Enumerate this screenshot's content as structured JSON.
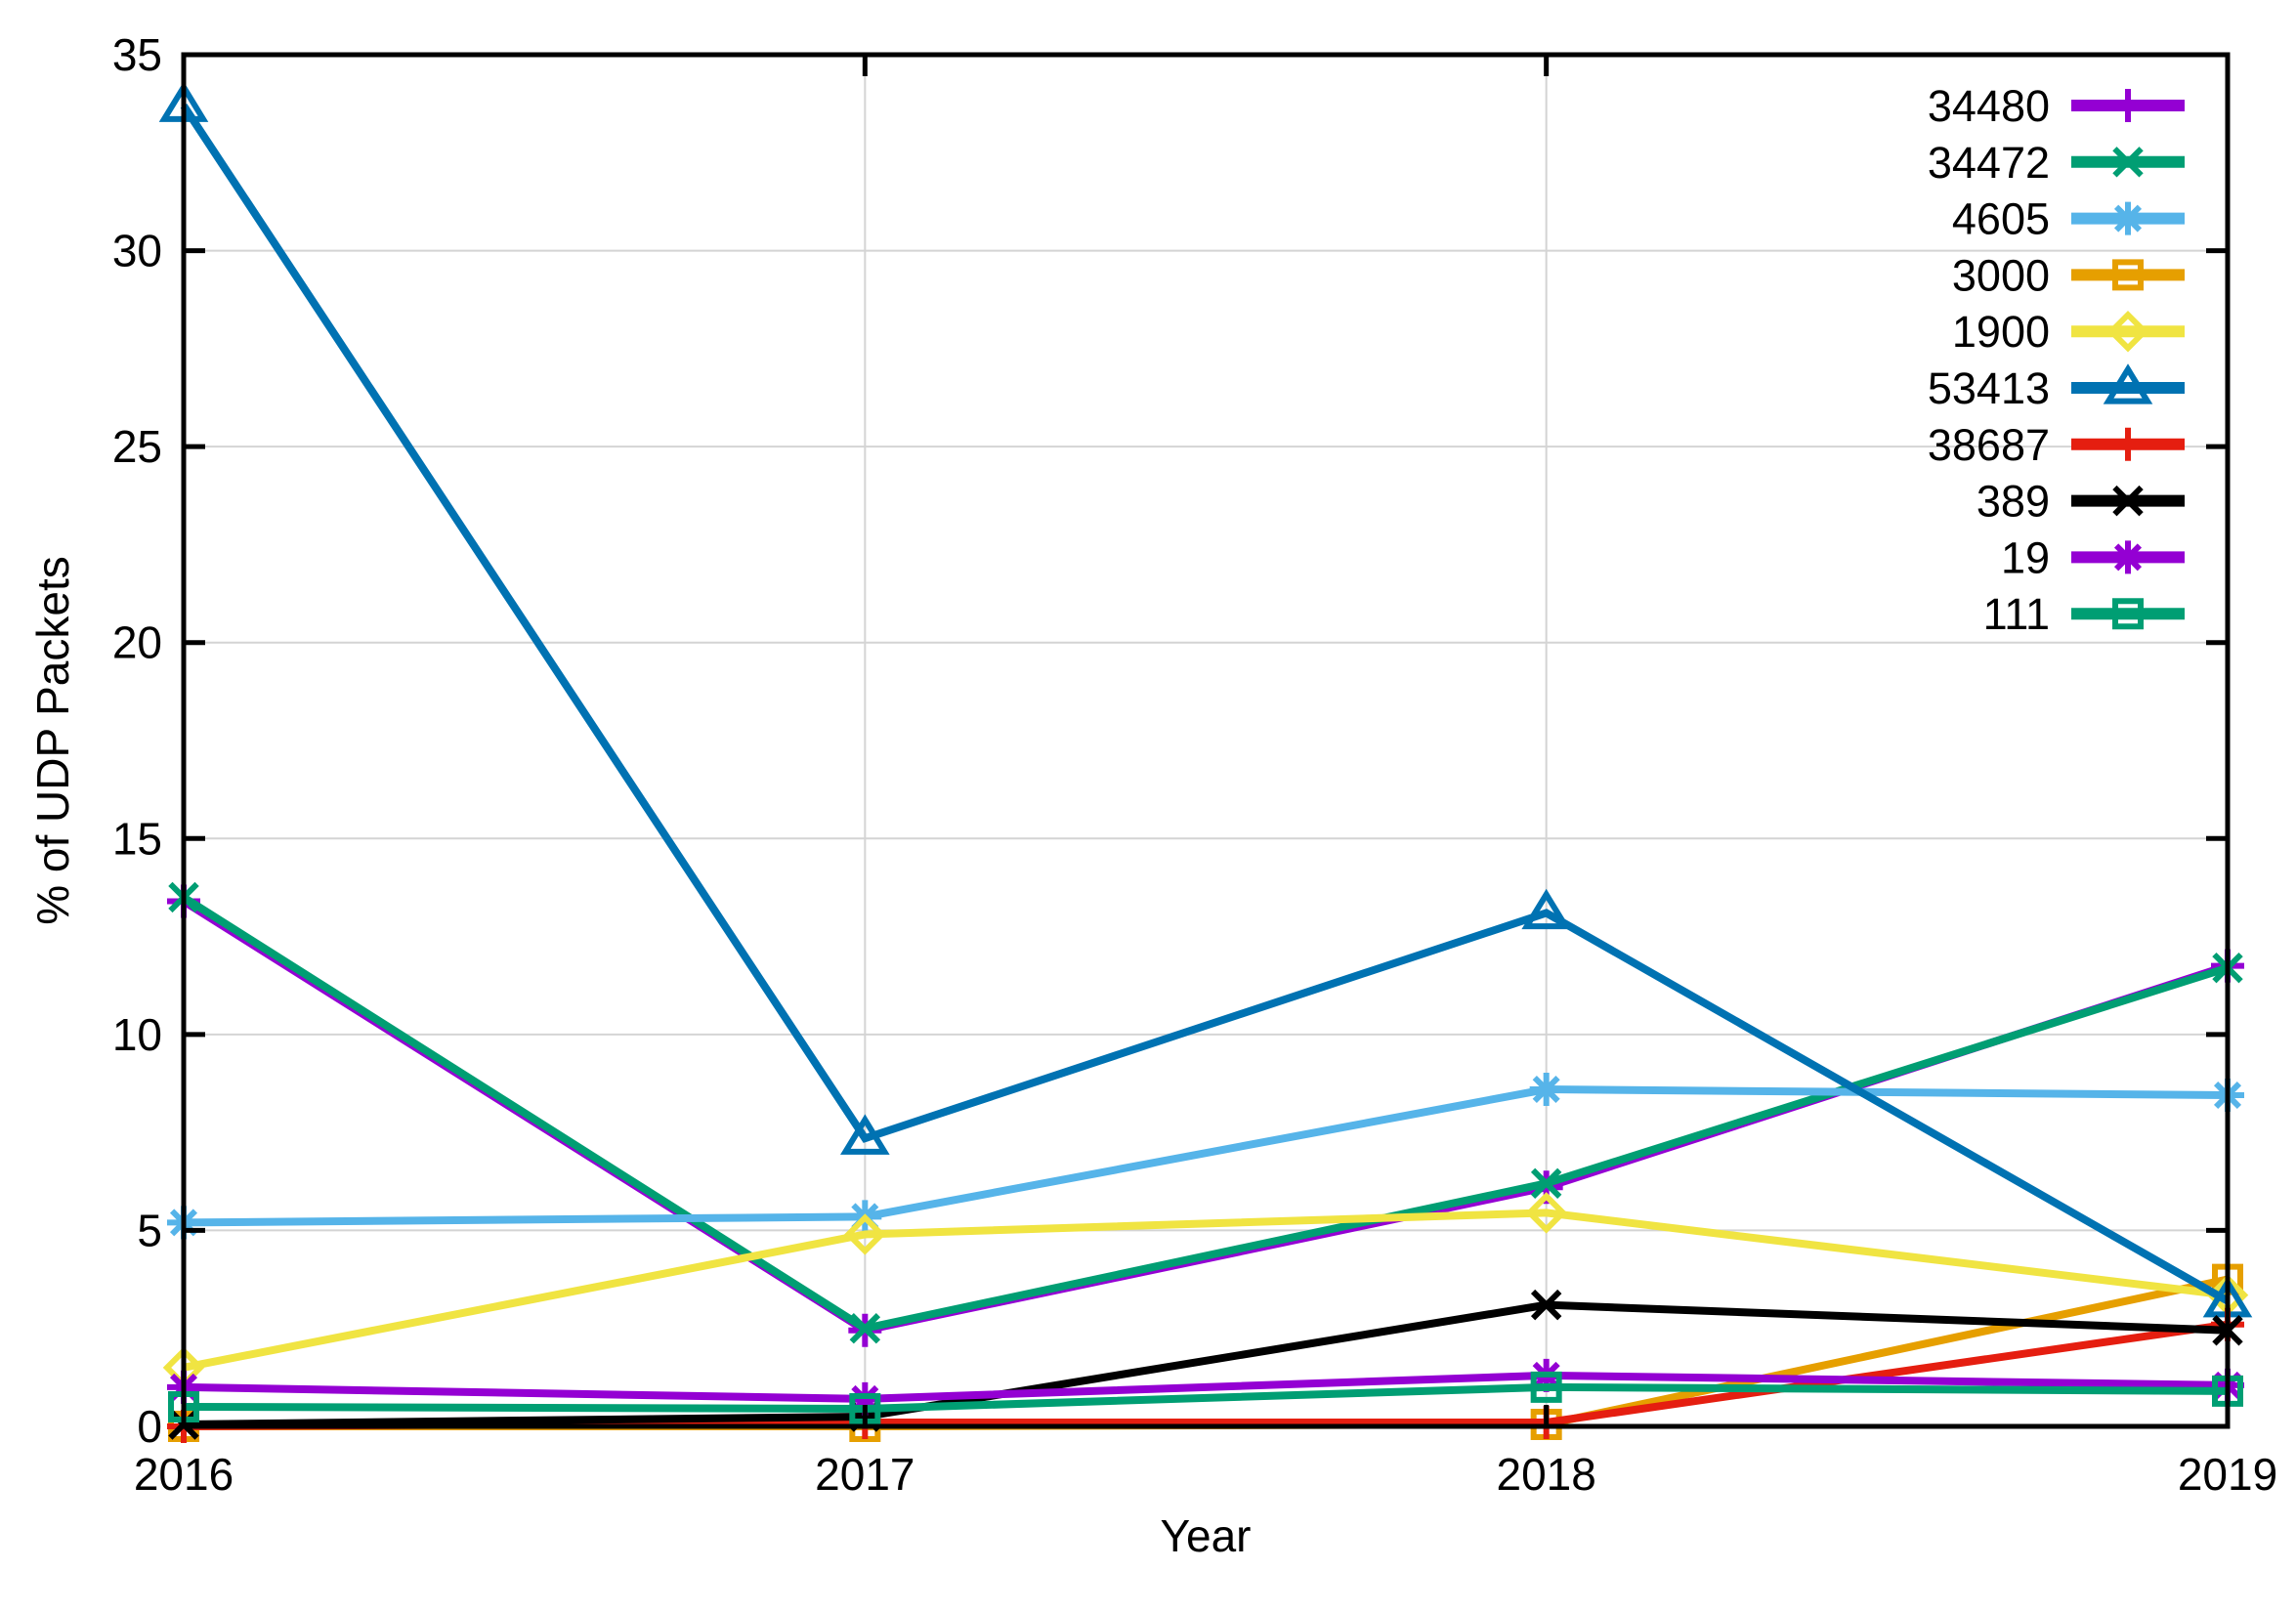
{
  "chart_data": {
    "type": "line",
    "title": "",
    "xlabel": "Year",
    "ylabel": "% of UDP Packets",
    "categories": [
      "2016",
      "2017",
      "2018",
      "2019"
    ],
    "x": [
      2016,
      2017,
      2018,
      2019
    ],
    "ylim": [
      0,
      35
    ],
    "yticks": [
      0,
      5,
      10,
      15,
      20,
      25,
      30,
      35
    ],
    "grid": true,
    "legend_position": "top-right",
    "background": "#ffffff",
    "grid_color": "#d4d4d4",
    "axis_color": "#000000",
    "series": [
      {
        "name": "34480",
        "color": "#9400d3",
        "marker": "plus",
        "values": [
          13.4,
          2.45,
          6.1,
          11.75
        ]
      },
      {
        "name": "34472",
        "color": "#009e73",
        "marker": "x",
        "values": [
          13.5,
          2.5,
          6.2,
          11.7
        ]
      },
      {
        "name": "4605",
        "color": "#56b4e9",
        "marker": "asterisk",
        "values": [
          5.2,
          5.35,
          8.6,
          8.45
        ]
      },
      {
        "name": "3000",
        "color": "#e69f00",
        "marker": "square-open",
        "values": [
          0.0,
          0.0,
          0.05,
          3.75
        ]
      },
      {
        "name": "1900",
        "color": "#f0e442",
        "marker": "diamond-open",
        "values": [
          1.5,
          4.9,
          5.45,
          3.35
        ]
      },
      {
        "name": "53413",
        "color": "#0072b2",
        "marker": "triangle-open",
        "values": [
          33.7,
          7.35,
          13.1,
          3.2
        ]
      },
      {
        "name": "38687",
        "color": "#e51e10",
        "marker": "plus",
        "values": [
          0.0,
          0.1,
          0.1,
          2.6
        ]
      },
      {
        "name": "389",
        "color": "#000000",
        "marker": "x",
        "values": [
          0.05,
          0.25,
          3.1,
          2.45
        ]
      },
      {
        "name": "19",
        "color": "#9400d3",
        "marker": "asterisk",
        "values": [
          1.0,
          0.7,
          1.3,
          1.05
        ]
      },
      {
        "name": "111",
        "color": "#009e73",
        "marker": "square-open",
        "values": [
          0.5,
          0.45,
          1.0,
          0.9
        ]
      }
    ]
  }
}
